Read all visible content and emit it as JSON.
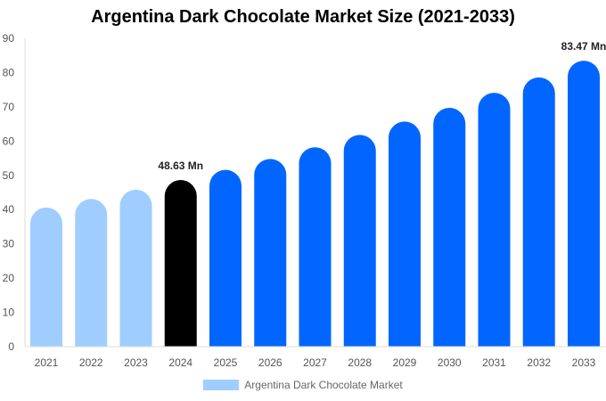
{
  "chart_data": {
    "type": "bar",
    "title": "Argentina Dark Chocolate Market Size (2021-2033)",
    "categories": [
      "2021",
      "2022",
      "2023",
      "2024",
      "2025",
      "2026",
      "2027",
      "2028",
      "2029",
      "2030",
      "2031",
      "2032",
      "2033"
    ],
    "values": [
      40.6,
      43.1,
      45.8,
      48.63,
      51.6,
      54.8,
      58.2,
      61.8,
      65.7,
      69.7,
      74.1,
      78.6,
      83.47
    ],
    "colors": [
      "#a0cdff",
      "#a0cdff",
      "#a0cdff",
      "#000000",
      "#0066ff",
      "#0066ff",
      "#0066ff",
      "#0066ff",
      "#0066ff",
      "#0066ff",
      "#0066ff",
      "#0066ff",
      "#0066ff"
    ],
    "data_labels": {
      "3": "48.63 Mn",
      "12": "83.47 Mn"
    },
    "ylim": [
      0,
      90
    ],
    "yticks": [
      0,
      10,
      20,
      30,
      40,
      50,
      60,
      70,
      80,
      90
    ],
    "xlabel": "",
    "ylabel": "",
    "grid": false,
    "legend": {
      "position": "bottom",
      "entries": [
        {
          "name": "Argentina Dark Chocolate Market",
          "color": "#a0cdff"
        }
      ]
    }
  }
}
